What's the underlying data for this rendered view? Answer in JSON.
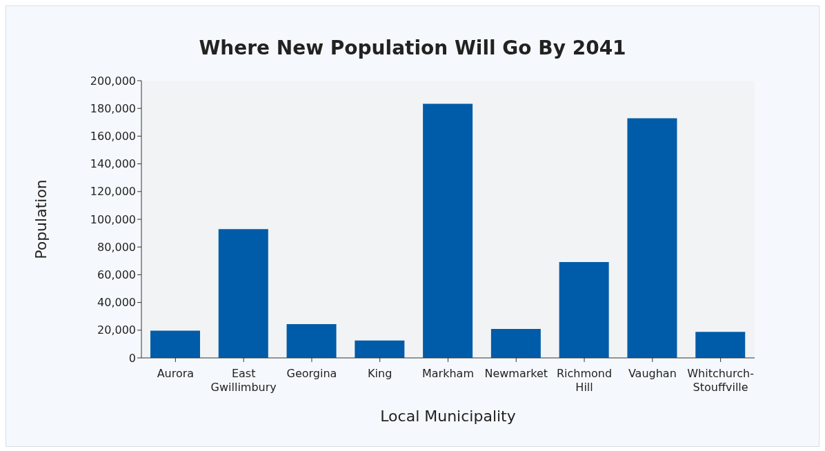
{
  "chart_data": {
    "type": "bar",
    "title": "Where New Population Will Go By 2041",
    "xlabel": "Local Municipality",
    "ylabel": "Population",
    "categories": [
      "Aurora",
      "East Gwillimbury",
      "Georgina",
      "King",
      "Markham",
      "Newmarket",
      "Richmond Hill",
      "Vaughan",
      "Whitchurch-Stouffville"
    ],
    "values": [
      19600,
      92900,
      24400,
      12600,
      183300,
      20900,
      69200,
      172900,
      18800
    ],
    "color": "#005ca8",
    "ylim": [
      0,
      200000
    ],
    "yticks": [
      0,
      {
        "value": 20000,
        "label": "20,000"
      },
      {
        "value": 40000,
        "label": "40,000"
      },
      {
        "value": 60000,
        "label": "60,000"
      },
      {
        "value": 80000,
        "label": "80,000"
      },
      {
        "value": 100000,
        "label": "100,000"
      },
      {
        "value": 120000,
        "label": "120,000"
      },
      {
        "value": 140000,
        "label": "140,000"
      },
      {
        "value": 160000,
        "label": "160,000"
      },
      {
        "value": 180000,
        "label": "180,000"
      },
      {
        "value": 200000,
        "label": "200,000"
      }
    ],
    "grid": false,
    "legend": false
  }
}
